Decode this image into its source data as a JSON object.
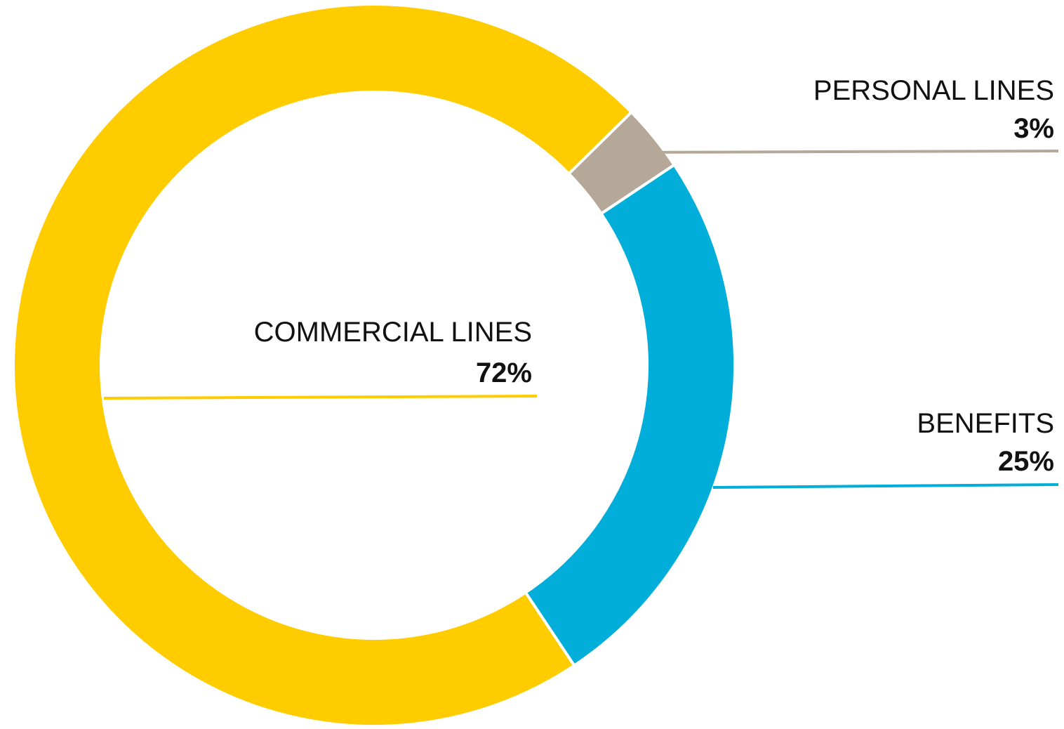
{
  "chart_data": {
    "type": "pie",
    "variant": "donut",
    "segments": [
      {
        "label": "PERSONAL LINES",
        "value": 3,
        "value_label": "3%",
        "color": "#B5A899"
      },
      {
        "label": "BENEFITS",
        "value": 25,
        "value_label": "25%",
        "color": "#00AED9"
      },
      {
        "label": "COMMERCIAL LINES",
        "value": 72,
        "value_label": "72%",
        "color": "#FFCC00"
      }
    ],
    "legend": "leader-line labels"
  }
}
